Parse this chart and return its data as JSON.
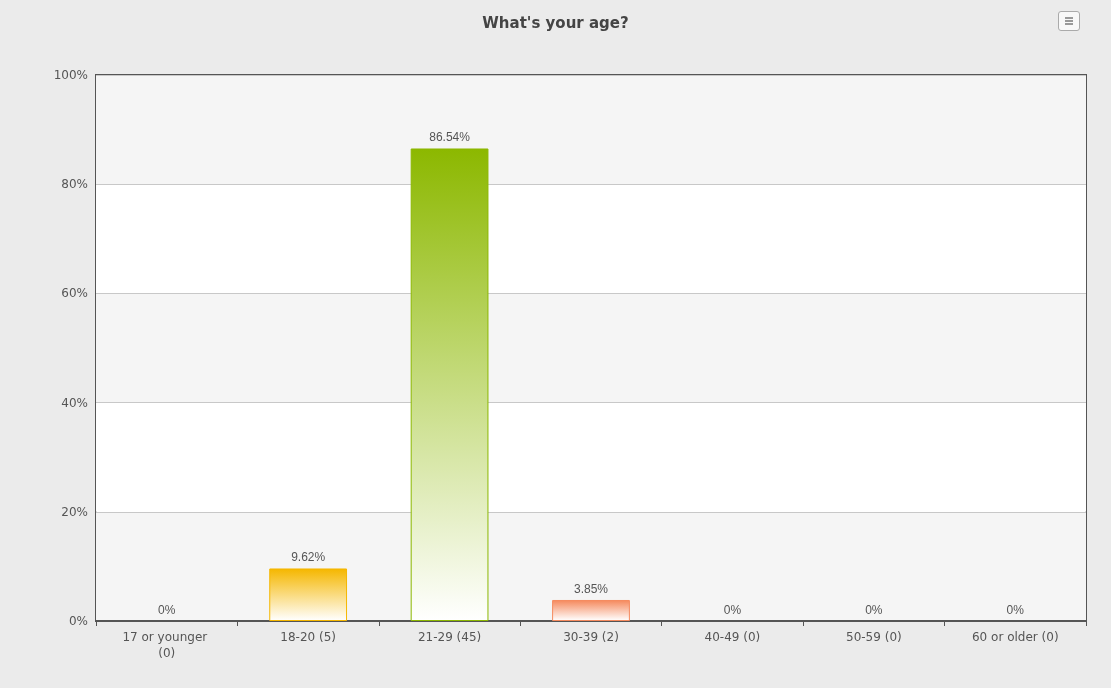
{
  "chart_data": {
    "type": "bar",
    "title": "What's your age?",
    "categories": [
      "17 or younger (0)",
      "18-20 (5)",
      "21-29 (45)",
      "30-39 (2)",
      "40-49 (0)",
      "50-59 (0)",
      "60 or older (0)"
    ],
    "values": [
      0,
      9.62,
      86.54,
      3.85,
      0,
      0,
      0
    ],
    "value_labels": [
      "0%",
      "9.62%",
      "86.54%",
      "3.85%",
      "0%",
      "0%",
      "0%"
    ],
    "colors": [
      null,
      "#f5b700",
      "#8cb800",
      "#f58a5e",
      null,
      null,
      null
    ],
    "ylim": [
      0,
      100
    ],
    "yticks": [
      {
        "value": 0,
        "label": "0%"
      },
      {
        "value": 20,
        "label": "20%"
      },
      {
        "value": 40,
        "label": "40%"
      },
      {
        "value": 60,
        "label": "60%"
      },
      {
        "value": 80,
        "label": "80%"
      },
      {
        "value": 100,
        "label": "100%"
      }
    ],
    "grid": "y"
  }
}
